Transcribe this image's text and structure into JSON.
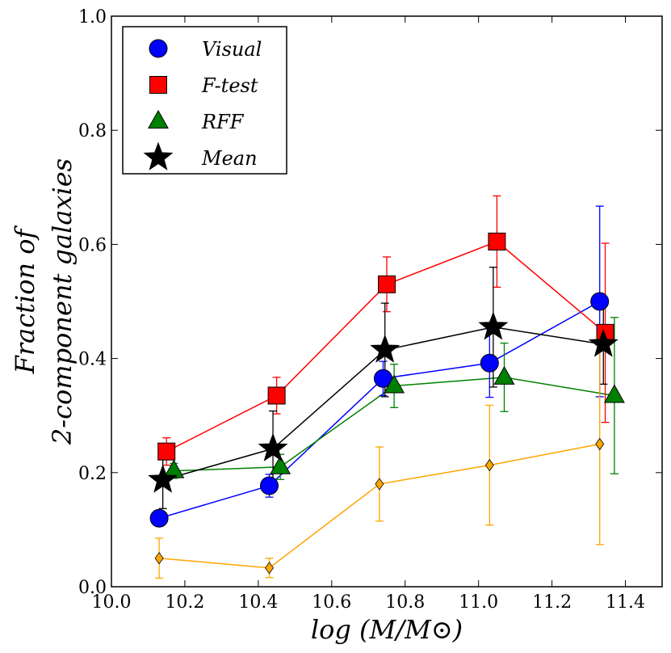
{
  "chart_data": {
    "type": "scatter",
    "xlabel": "log (M/M⊙)",
    "ylabel_line1": "Fraction of",
    "ylabel_line2": "2-component galaxies",
    "xlim": [
      10.0,
      11.5
    ],
    "ylim": [
      0.0,
      1.0
    ],
    "xticks": [
      "10.0",
      "10.2",
      "10.4",
      "10.6",
      "10.8",
      "11.0",
      "11.2",
      "11.4"
    ],
    "yticks": [
      "0.0",
      "0.2",
      "0.4",
      "0.6",
      "0.8",
      "1.0"
    ],
    "grid": false,
    "legend_position": "top-left",
    "series": [
      {
        "name": "Visual",
        "in_legend": true,
        "color": "#0000ff",
        "marker": "circle",
        "x": [
          10.13,
          10.43,
          10.74,
          11.03,
          11.33
        ],
        "y": [
          0.12,
          0.177,
          0.365,
          0.392,
          0.5
        ],
        "err": [
          0,
          0.02,
          0.03,
          0.06,
          0.167
        ]
      },
      {
        "name": "F-test",
        "in_legend": true,
        "color": "#ff0000",
        "marker": "square",
        "x": [
          10.15,
          10.45,
          10.75,
          11.05,
          11.345
        ],
        "y": [
          0.237,
          0.335,
          0.53,
          0.605,
          0.445
        ],
        "err": [
          0.024,
          0.032,
          0.048,
          0.08,
          0.157
        ]
      },
      {
        "name": "RFF",
        "in_legend": true,
        "color": "#008000",
        "marker": "triangle",
        "x": [
          10.17,
          10.46,
          10.77,
          11.07,
          11.37
        ],
        "y": [
          0.203,
          0.21,
          0.352,
          0.367,
          0.335
        ],
        "err": [
          0.013,
          0.022,
          0.038,
          0.06,
          0.137
        ]
      },
      {
        "name": "Mean",
        "in_legend": true,
        "color": "#000000",
        "marker": "star",
        "x": [
          10.14,
          10.44,
          10.745,
          11.04,
          11.34
        ],
        "y": [
          0.187,
          0.242,
          0.415,
          0.455,
          0.425
        ],
        "err": [
          0.05,
          0.066,
          0.082,
          0.105,
          0.07
        ]
      },
      {
        "name": "",
        "in_legend": false,
        "color": "#ffa500",
        "marker": "diamond",
        "x": [
          10.13,
          10.43,
          10.73,
          11.03,
          11.33
        ],
        "y": [
          0.05,
          0.033,
          0.18,
          0.213,
          0.25
        ],
        "err": [
          0.035,
          0.017,
          0.065,
          0.105,
          0.176
        ]
      }
    ]
  }
}
